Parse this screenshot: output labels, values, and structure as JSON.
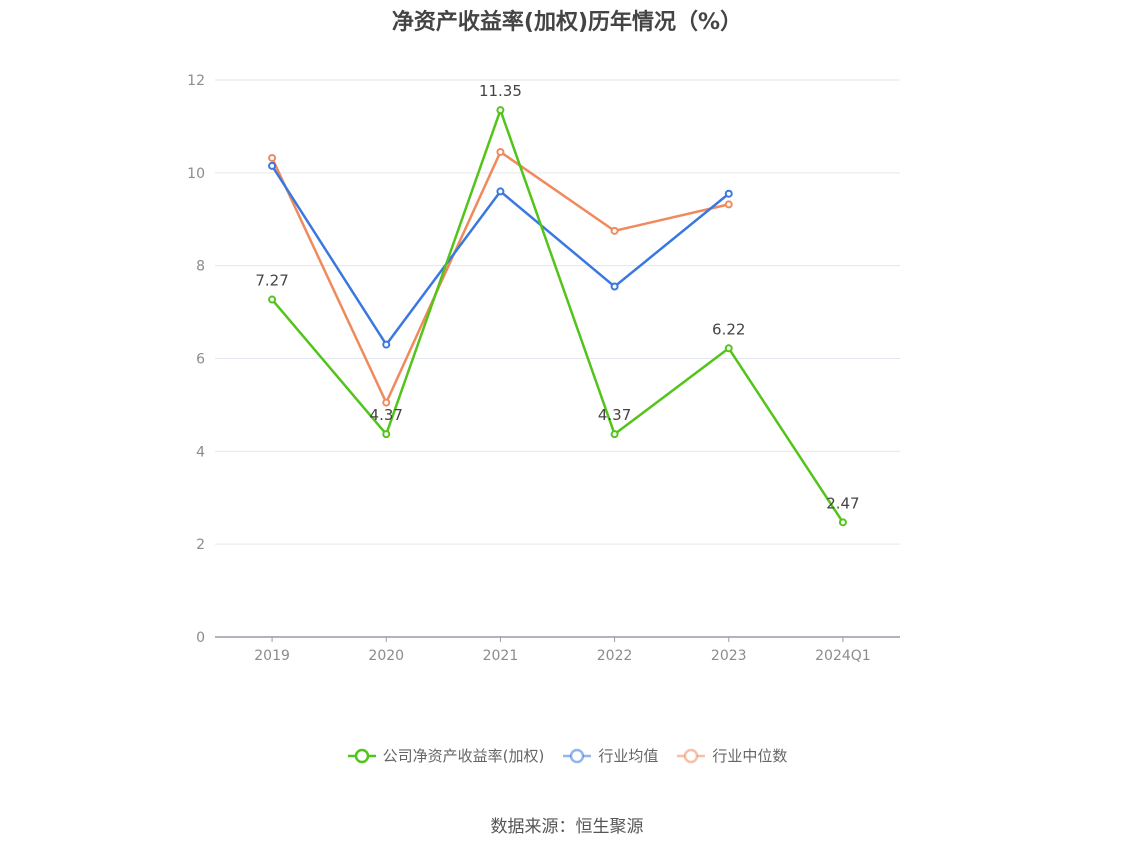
{
  "title": "净资产收益率(加权)历年情况（%）",
  "source": "数据来源：恒生聚源",
  "chart_data": {
    "type": "line",
    "title": "净资产收益率(加权)历年情况（%）",
    "xlabel": "",
    "ylabel": "",
    "categories": [
      "2019",
      "2020",
      "2021",
      "2022",
      "2023",
      "2024Q1"
    ],
    "ylim": [
      0,
      12
    ],
    "yticks": [
      "0",
      "2",
      "4",
      "6",
      "8",
      "10",
      "12"
    ],
    "grid": true,
    "legend_position": "bottom",
    "series": [
      {
        "name": "公司净资产收益率(加权)",
        "color": "#52c41a",
        "values": [
          7.27,
          4.37,
          11.35,
          4.37,
          6.22,
          2.47
        ],
        "labels": [
          "7.27",
          "4.37",
          "11.35",
          "4.37",
          "6.22",
          "2.47"
        ]
      },
      {
        "name": "行业均值",
        "color": "#3a78e0",
        "values": [
          10.15,
          6.3,
          9.6,
          7.55,
          9.55,
          null
        ]
      },
      {
        "name": "行业中位数",
        "color": "#f08a5d",
        "values": [
          10.32,
          5.05,
          10.45,
          8.75,
          9.32,
          null
        ]
      }
    ]
  }
}
